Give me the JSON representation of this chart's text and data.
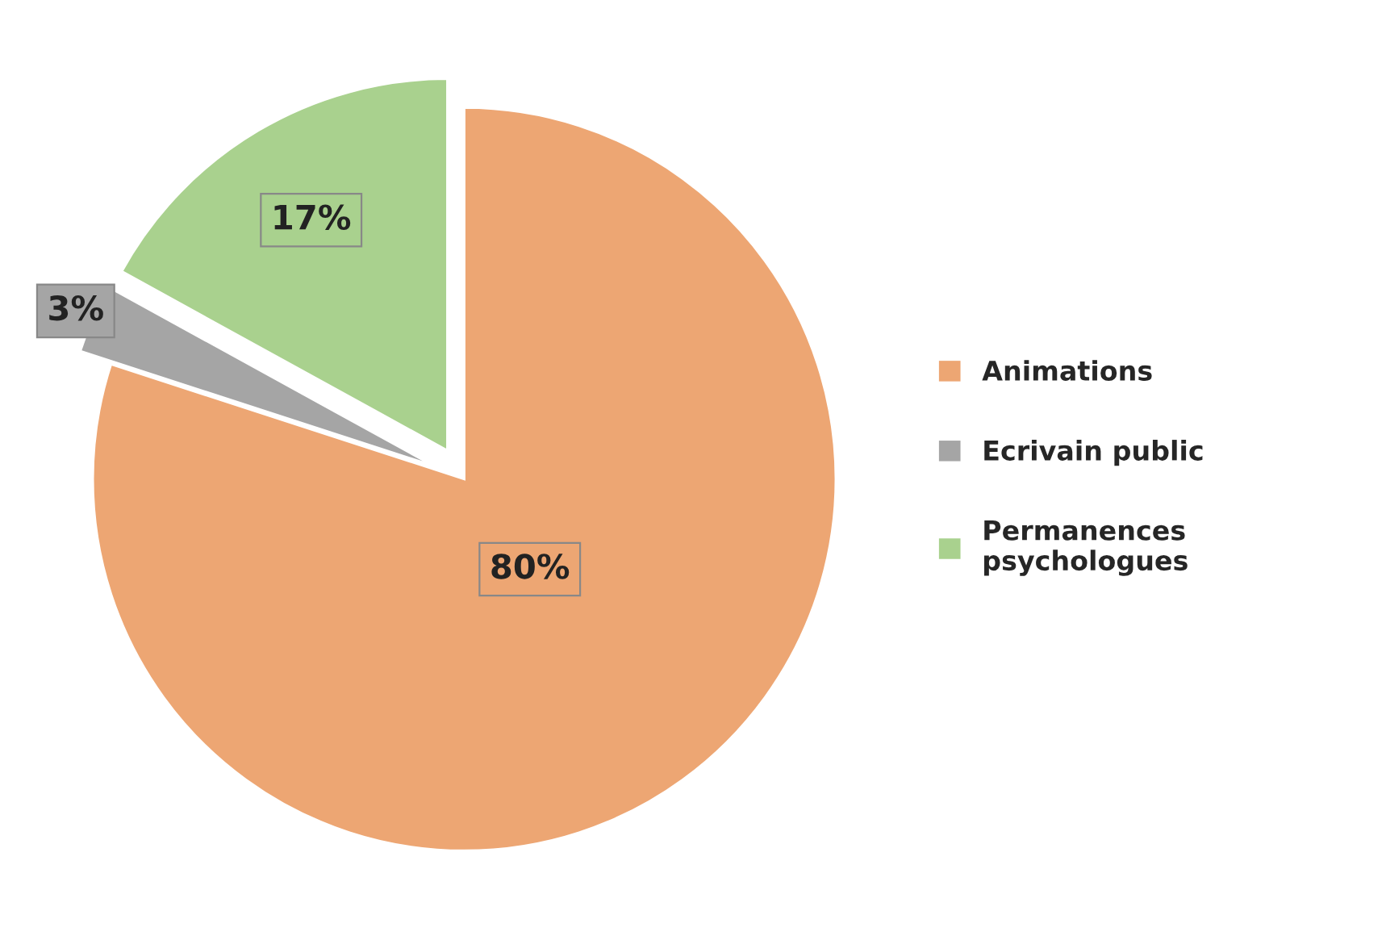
{
  "chart_data": {
    "type": "pie",
    "categories": [
      "Animations",
      "Ecrivain public",
      "Permanences psychologues"
    ],
    "values": [
      80,
      3,
      17
    ],
    "colors": [
      "#eda673",
      "#a5a5a5",
      "#a9d18e"
    ],
    "value_labels": [
      "80%",
      "3%",
      "17%"
    ],
    "legend": "right"
  }
}
